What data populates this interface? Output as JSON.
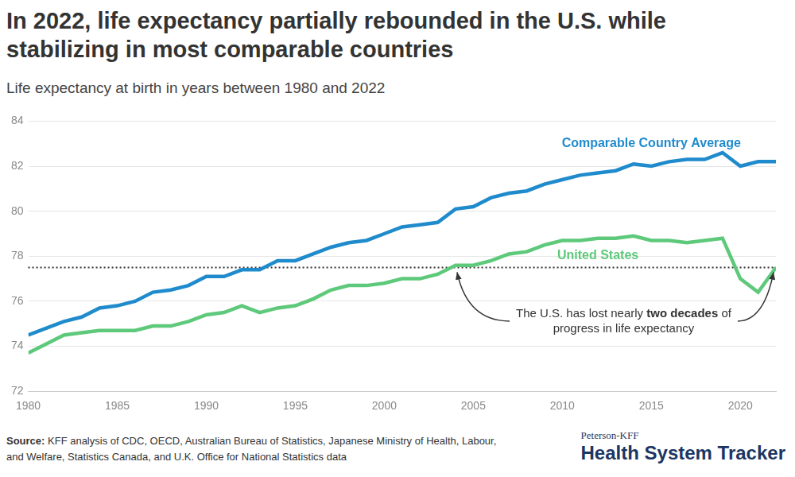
{
  "chart_data": {
    "type": "line",
    "title": "In 2022, life expectancy partially rebounded in the U.S. while stabilizing in most comparable countries",
    "subtitle": "Life expectancy at birth in years between 1980 and 2022",
    "x": [
      1980,
      1981,
      1982,
      1983,
      1984,
      1985,
      1986,
      1987,
      1988,
      1989,
      1990,
      1991,
      1992,
      1993,
      1994,
      1995,
      1996,
      1997,
      1998,
      1999,
      2000,
      2001,
      2002,
      2003,
      2004,
      2005,
      2006,
      2007,
      2008,
      2009,
      2010,
      2011,
      2012,
      2013,
      2014,
      2015,
      2016,
      2017,
      2018,
      2019,
      2020,
      2021,
      2022
    ],
    "series": [
      {
        "name": "Comparable Country Average",
        "color": "#1f8bcc",
        "values": [
          74.5,
          74.8,
          75.1,
          75.3,
          75.7,
          75.8,
          76.0,
          76.4,
          76.5,
          76.7,
          77.1,
          77.1,
          77.4,
          77.4,
          77.8,
          77.8,
          78.1,
          78.4,
          78.6,
          78.7,
          79.0,
          79.3,
          79.4,
          79.5,
          80.1,
          80.2,
          80.6,
          80.8,
          80.9,
          81.2,
          81.4,
          81.6,
          81.7,
          81.8,
          82.1,
          82.0,
          82.2,
          82.3,
          82.3,
          82.6,
          82.0,
          82.2,
          82.2
        ]
      },
      {
        "name": "United States",
        "color": "#5ec97b",
        "values": [
          73.7,
          74.1,
          74.5,
          74.6,
          74.7,
          74.7,
          74.7,
          74.9,
          74.9,
          75.1,
          75.4,
          75.5,
          75.8,
          75.5,
          75.7,
          75.8,
          76.1,
          76.5,
          76.7,
          76.7,
          76.8,
          77.0,
          77.0,
          77.2,
          77.6,
          77.6,
          77.8,
          78.1,
          78.2,
          78.5,
          78.7,
          78.7,
          78.8,
          78.8,
          78.9,
          78.7,
          78.7,
          78.6,
          78.7,
          78.8,
          77.0,
          76.4,
          77.5
        ]
      }
    ],
    "xlim": [
      1980,
      2022
    ],
    "xticks": [
      1980,
      1985,
      1990,
      1995,
      2000,
      2005,
      2010,
      2015,
      2020
    ],
    "ylim": [
      72,
      84
    ],
    "yticks": [
      72,
      74,
      76,
      78,
      80,
      82,
      84
    ],
    "grid": true,
    "annotation": {
      "text": [
        [
          "The U.S. has lost nearly ",
          "two decades",
          " of"
        ],
        [
          "progress in life expectancy"
        ]
      ],
      "y": 77.5,
      "x": [
        2004,
        2022
      ],
      "line_style": "dotted"
    },
    "source_label": "Source:",
    "source": "KFF analysis of CDC, OECD, Australian Bureau of Statistics, Japanese Ministry of Health, Labour, and Welfare, Statistics Canada, and U.K. Office for National Statistics data",
    "logo": [
      "Peterson-KFF",
      "Health System Tracker"
    ]
  }
}
